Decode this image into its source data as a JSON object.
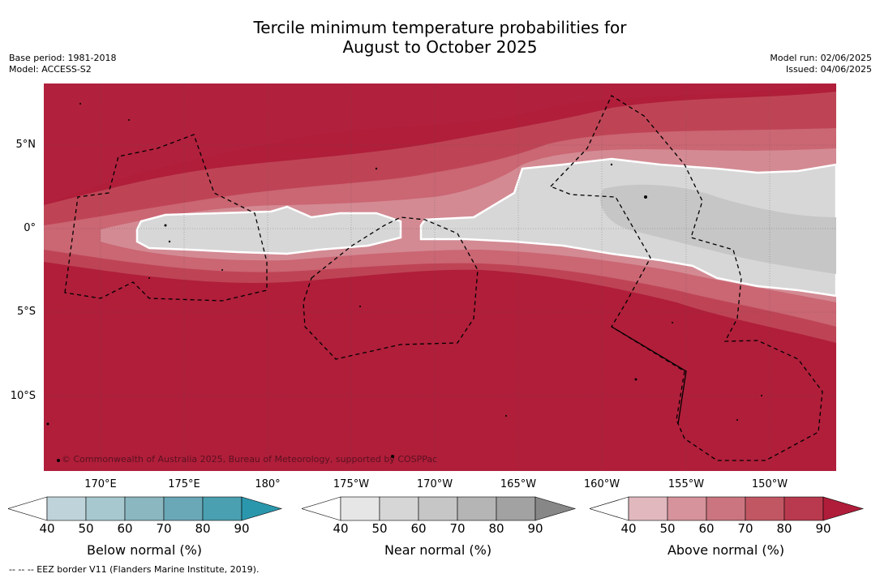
{
  "title_line1": "Tercile minimum temperature probabilities for",
  "title_line2": "August to October 2025",
  "meta_left": [
    "Base period: 1981-2018",
    "Model: ACCESS-S2"
  ],
  "meta_right": [
    "Model run: 02/06/2025",
    "Issued: 04/06/2025"
  ],
  "lat_labels": [
    "5°N",
    "0°",
    "5°S",
    "10°S"
  ],
  "lon_labels": [
    "170°E",
    "175°E",
    "180°",
    "175°W",
    "170°W",
    "165°W",
    "160°W",
    "155°W",
    "150°W"
  ],
  "copyright": "© Commonwealth of Australia 2025, Bureau of Meteorology, supported by COSPPac",
  "colorbars": [
    {
      "label": "Below normal (%)",
      "ticks": [
        "40",
        "50",
        "60",
        "70",
        "80",
        "90"
      ],
      "colors": [
        "#bfd4da",
        "#a7c8ce",
        "#8bb7c1",
        "#6aa8b7",
        "#4aa0b0",
        "#2b97ad"
      ]
    },
    {
      "label": "Near normal (%)",
      "ticks": [
        "40",
        "50",
        "60",
        "70",
        "80",
        "90"
      ],
      "colors": [
        "#e6e6e6",
        "#d6d6d6",
        "#c6c6c6",
        "#b5b5b5",
        "#a2a2a2",
        "#878787"
      ]
    },
    {
      "label": "Above normal (%)",
      "ticks": [
        "40",
        "50",
        "60",
        "70",
        "80",
        "90"
      ],
      "colors": [
        "#e0b8be",
        "#d6939c",
        "#cb7580",
        "#c25764",
        "#b93a4e",
        "#b01d3a"
      ]
    }
  ],
  "footnote": "-- -- -- EEZ border V11 (Flanders Marine Institute, 2019).",
  "map_colors": {
    "above_80": "#b01e3a",
    "above_70": "#be4455",
    "above_60": "#cb6673",
    "above_50": "#d38a93",
    "near_50": "#d7d7d7",
    "near_60": "#c6c6c6"
  }
}
